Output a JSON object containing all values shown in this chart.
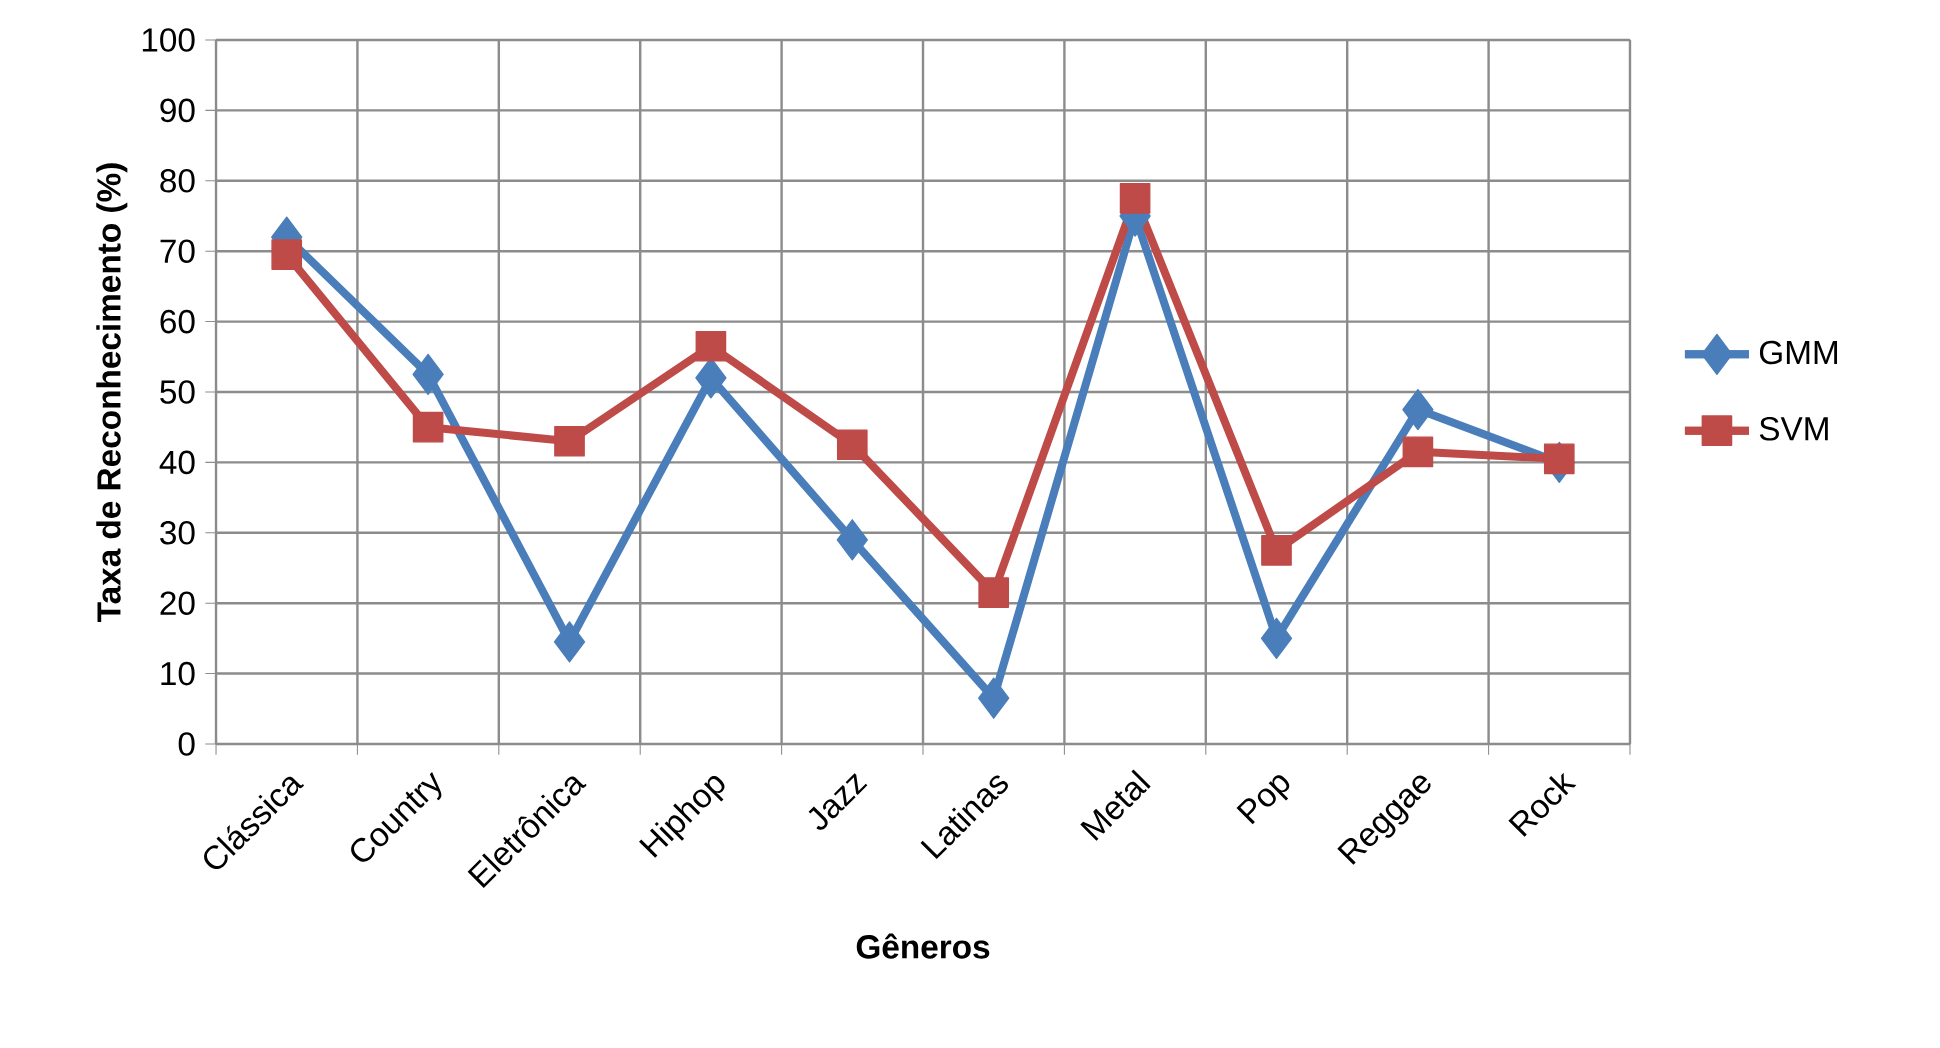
{
  "chart_data": {
    "type": "line",
    "xlabel": "Gêneros",
    "ylabel": "Taxa de Reconhecimento (%)",
    "categories": [
      "Clássica",
      "Country",
      "Eletrônica",
      "Hiphop",
      "Jazz",
      "Latinas",
      "Metal",
      "Pop",
      "Reggae",
      "Rock"
    ],
    "series": [
      {
        "name": "GMM",
        "color": "#4a7ebb",
        "marker": "diamond",
        "values": [
          72,
          52.5,
          14.5,
          52,
          29,
          6.5,
          75,
          15,
          47.5,
          40
        ]
      },
      {
        "name": "SVM",
        "color": "#be4b48",
        "marker": "square",
        "values": [
          69.5,
          45,
          43,
          56.5,
          42.5,
          21.5,
          77.5,
          27.5,
          41.5,
          40.5
        ]
      }
    ],
    "ylim": [
      0,
      100
    ],
    "yticks": [
      0,
      10,
      20,
      30,
      40,
      50,
      60,
      70,
      80,
      90,
      100
    ],
    "grid": true,
    "legend": "right",
    "line_style": "solid"
  }
}
